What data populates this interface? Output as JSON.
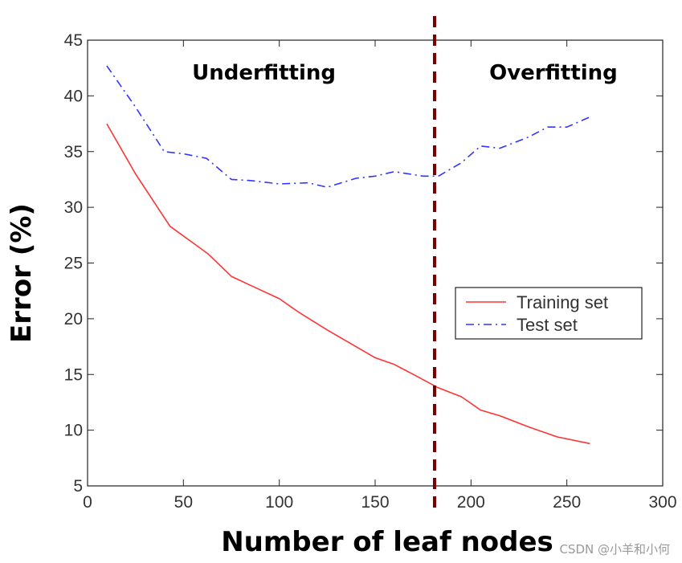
{
  "chart_data": {
    "type": "line",
    "title": "",
    "xlabel": "Number of leaf nodes",
    "ylabel": "Error (%)",
    "xlim": [
      0,
      300
    ],
    "ylim": [
      5,
      45
    ],
    "xticks": [
      0,
      50,
      100,
      150,
      200,
      250,
      300
    ],
    "yticks": [
      5,
      10,
      15,
      20,
      25,
      30,
      35,
      40,
      45
    ],
    "grid": false,
    "legend_position": "right",
    "series": [
      {
        "name": "Training set",
        "color": "#ff3333",
        "style": "solid",
        "points": [
          [
            10,
            37.5
          ],
          [
            25,
            33.0
          ],
          [
            43,
            28.3
          ],
          [
            55,
            26.8
          ],
          [
            63,
            25.8
          ],
          [
            75,
            23.8
          ],
          [
            85,
            23.0
          ],
          [
            100,
            21.8
          ],
          [
            110,
            20.6
          ],
          [
            125,
            19.0
          ],
          [
            140,
            17.5
          ],
          [
            150,
            16.5
          ],
          [
            160,
            15.9
          ],
          [
            170,
            15.0
          ],
          [
            183,
            13.8
          ],
          [
            195,
            13.0
          ],
          [
            205,
            11.8
          ],
          [
            215,
            11.3
          ],
          [
            230,
            10.3
          ],
          [
            245,
            9.4
          ],
          [
            262,
            8.8
          ]
        ]
      },
      {
        "name": "Test set",
        "color": "#3333ff",
        "style": "dashdot",
        "points": [
          [
            10,
            42.7
          ],
          [
            25,
            39.0
          ],
          [
            40,
            35.0
          ],
          [
            50,
            34.8
          ],
          [
            62,
            34.4
          ],
          [
            75,
            32.5
          ],
          [
            85,
            32.4
          ],
          [
            100,
            32.1
          ],
          [
            115,
            32.2
          ],
          [
            125,
            31.8
          ],
          [
            140,
            32.6
          ],
          [
            150,
            32.8
          ],
          [
            160,
            33.2
          ],
          [
            175,
            32.8
          ],
          [
            183,
            32.8
          ],
          [
            195,
            34.0
          ],
          [
            205,
            35.5
          ],
          [
            215,
            35.3
          ],
          [
            230,
            36.3
          ],
          [
            240,
            37.2
          ],
          [
            250,
            37.2
          ],
          [
            262,
            38.1
          ]
        ]
      }
    ],
    "divider": {
      "x": 181,
      "color": "#7a0000",
      "style": "dashed"
    },
    "annotations": [
      {
        "text": "Underfitting",
        "x": 92,
        "y": 42.2
      },
      {
        "text": "Overfitting",
        "x": 243,
        "y": 42.2
      }
    ]
  },
  "watermark": "CSDN @小羊和小何"
}
